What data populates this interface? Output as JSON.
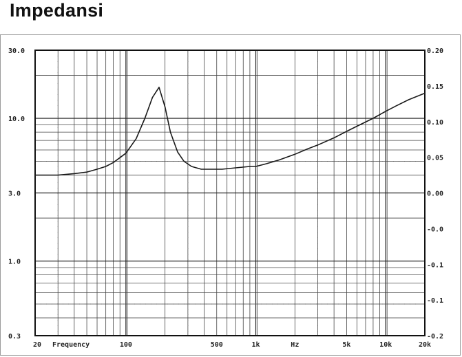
{
  "title": "Impedansi",
  "chart_data": {
    "type": "line",
    "title": "",
    "xlabel": "Frequency",
    "xunit": "Hz",
    "xscale": "log",
    "xlim": [
      20,
      20000
    ],
    "x_ticks": [
      {
        "value": 20,
        "label": "20"
      },
      {
        "value": 100,
        "label": "100"
      },
      {
        "value": 500,
        "label": "500"
      },
      {
        "value": 1000,
        "label": "1k"
      },
      {
        "value": 5000,
        "label": "5k"
      },
      {
        "value": 10000,
        "label": "10k"
      },
      {
        "value": 20000,
        "label": "20k"
      }
    ],
    "yscale": "log",
    "ylim": [
      0.3,
      30
    ],
    "y_ticks_left": [
      "30.0",
      "10.0",
      "3.0",
      "1.0",
      "0.3"
    ],
    "y_ticks_right": [
      "0.20",
      "0.15",
      "0.10",
      "0.05",
      "0.00",
      "-0.0",
      "-0.1",
      "-0.1",
      "-0.2"
    ],
    "grid": true,
    "series": [
      {
        "x": [
          20,
          30,
          40,
          50,
          60,
          70,
          80,
          90,
          100,
          120,
          140,
          160,
          180,
          200,
          220,
          250,
          280,
          320,
          380,
          450,
          550,
          700,
          900,
          1000,
          1200,
          1500,
          2000,
          2500,
          3000,
          4000,
          5000,
          6000,
          8000,
          10000,
          12000,
          15000,
          20000
        ],
        "y": [
          4.0,
          4.0,
          4.1,
          4.2,
          4.4,
          4.6,
          4.9,
          5.3,
          5.7,
          7.2,
          10.0,
          14.0,
          16.5,
          12.0,
          8.0,
          5.8,
          5.0,
          4.6,
          4.4,
          4.4,
          4.4,
          4.5,
          4.6,
          4.6,
          4.8,
          5.1,
          5.6,
          6.1,
          6.5,
          7.3,
          8.1,
          8.8,
          10.0,
          11.2,
          12.2,
          13.5,
          15.0
        ]
      }
    ]
  }
}
